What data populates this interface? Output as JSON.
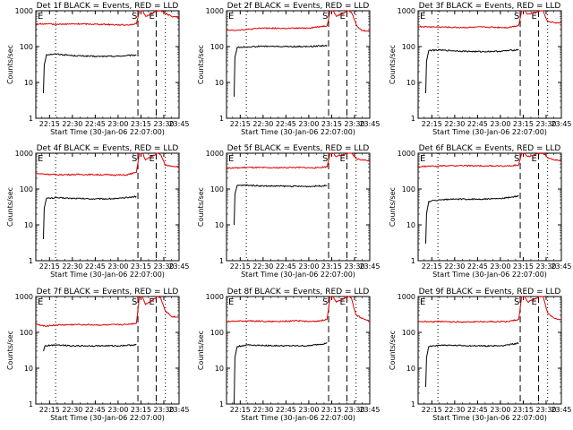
{
  "figure": {
    "xtick_labels": [
      "22:15",
      "22:30",
      "22:45",
      "23:00",
      "23:15",
      "23:30",
      "23:45"
    ],
    "ytick_labels": [
      "1",
      "10",
      "100",
      "1000"
    ],
    "xlabel": "Start Time (30-Jan-06 22:07:00)",
    "ylabel": "Counts/sec",
    "marker_e": "E",
    "marker_s": "S"
  },
  "colors": {
    "events": "#000000",
    "lld": "#e00000",
    "axes": "#000000"
  },
  "chart_data": [
    {
      "type": "line",
      "title": "Det 1f BLACK = Events, RED = LLD",
      "x_unit": "minutes since 22:07:00",
      "xlim": [
        6,
        100
      ],
      "ylim": [
        1,
        1000
      ],
      "yscale": "log",
      "vlines": {
        "dotted": [
          19,
          91
        ],
        "dashed": [
          73,
          85
        ]
      },
      "series": [
        {
          "name": "Events",
          "color": "#000000",
          "points": [
            [
              11,
              5
            ],
            [
              11.5,
              30
            ],
            [
              13,
              60
            ],
            [
              20,
              62
            ],
            [
              30,
              56
            ],
            [
              45,
              53
            ],
            [
              60,
              54
            ],
            [
              72,
              58
            ]
          ]
        },
        {
          "name": "LLD",
          "color": "#e00000",
          "points": [
            [
              6,
              430
            ],
            [
              20,
              420
            ],
            [
              35,
              430
            ],
            [
              50,
              420
            ],
            [
              65,
              400
            ],
            [
              72,
              430
            ],
            [
              74,
              1000
            ],
            [
              76,
              1000
            ],
            [
              78,
              700
            ],
            [
              86,
              1000
            ],
            [
              88,
              1000
            ],
            [
              90,
              900
            ],
            [
              95,
              700
            ],
            [
              100,
              650
            ]
          ]
        }
      ]
    },
    {
      "type": "line",
      "title": "Det 2f BLACK = Events, RED = LLD",
      "x_unit": "minutes since 22:07:00",
      "xlim": [
        6,
        100
      ],
      "ylim": [
        1,
        1000
      ],
      "yscale": "log",
      "vlines": {
        "dotted": [
          19,
          91
        ],
        "dashed": [
          73,
          85
        ]
      },
      "series": [
        {
          "name": "Events",
          "color": "#000000",
          "points": [
            [
              11,
              4
            ],
            [
              11.5,
              50
            ],
            [
              13,
              95
            ],
            [
              20,
              98
            ],
            [
              30,
              102
            ],
            [
              45,
              100
            ],
            [
              60,
              100
            ],
            [
              72,
              108
            ]
          ]
        },
        {
          "name": "LLD",
          "color": "#e00000",
          "points": [
            [
              6,
              280
            ],
            [
              20,
              300
            ],
            [
              30,
              330
            ],
            [
              45,
              320
            ],
            [
              60,
              330
            ],
            [
              72,
              380
            ],
            [
              74,
              1000
            ],
            [
              76,
              1000
            ],
            [
              78,
              700
            ],
            [
              86,
              1000
            ],
            [
              88,
              900
            ],
            [
              92,
              350
            ],
            [
              95,
              280
            ],
            [
              100,
              270
            ]
          ]
        }
      ]
    },
    {
      "type": "line",
      "title": "Det 3f BLACK = Events, RED = LLD",
      "x_unit": "minutes since 22:07:00",
      "xlim": [
        6,
        100
      ],
      "ylim": [
        1,
        1000
      ],
      "yscale": "log",
      "vlines": {
        "dotted": [
          19,
          91
        ],
        "dashed": [
          73,
          85
        ]
      },
      "series": [
        {
          "name": "Events",
          "color": "#000000",
          "points": [
            [
              11,
              5
            ],
            [
              11.5,
              40
            ],
            [
              13,
              78
            ],
            [
              20,
              80
            ],
            [
              30,
              76
            ],
            [
              45,
              72
            ],
            [
              60,
              74
            ],
            [
              72,
              82
            ]
          ]
        },
        {
          "name": "LLD",
          "color": "#e00000",
          "points": [
            [
              6,
              360
            ],
            [
              20,
              350
            ],
            [
              35,
              340
            ],
            [
              50,
              350
            ],
            [
              65,
              340
            ],
            [
              72,
              390
            ],
            [
              74,
              1000
            ],
            [
              76,
              1000
            ],
            [
              78,
              800
            ],
            [
              86,
              1000
            ],
            [
              88,
              1000
            ],
            [
              91,
              500
            ],
            [
              95,
              470
            ],
            [
              100,
              450
            ]
          ]
        }
      ]
    },
    {
      "type": "line",
      "title": "Det 4f BLACK = Events, RED = LLD",
      "x_unit": "minutes since 22:07:00",
      "xlim": [
        6,
        100
      ],
      "ylim": [
        1,
        1000
      ],
      "yscale": "log",
      "vlines": {
        "dotted": [
          19,
          91
        ],
        "dashed": [
          73,
          85
        ]
      },
      "series": [
        {
          "name": "Events",
          "color": "#000000",
          "points": [
            [
              11,
              4
            ],
            [
              11.5,
              30
            ],
            [
              13,
              55
            ],
            [
              20,
              57
            ],
            [
              30,
              55
            ],
            [
              45,
              53
            ],
            [
              60,
              54
            ],
            [
              72,
              62
            ]
          ]
        },
        {
          "name": "LLD",
          "color": "#e00000",
          "points": [
            [
              6,
              270
            ],
            [
              20,
              250
            ],
            [
              35,
              255
            ],
            [
              50,
              250
            ],
            [
              65,
              245
            ],
            [
              72,
              290
            ],
            [
              74,
              1000
            ],
            [
              76,
              1000
            ],
            [
              78,
              650
            ],
            [
              86,
              1000
            ],
            [
              88,
              900
            ],
            [
              91,
              460
            ],
            [
              95,
              440
            ],
            [
              100,
              420
            ]
          ]
        }
      ]
    },
    {
      "type": "line",
      "title": "Det 5f BLACK = Events, RED = LLD",
      "x_unit": "minutes since 22:07:00",
      "xlim": [
        6,
        100
      ],
      "ylim": [
        1,
        1000
      ],
      "yscale": "log",
      "vlines": {
        "dotted": [
          19,
          91
        ],
        "dashed": [
          73,
          85
        ]
      },
      "series": [
        {
          "name": "Events",
          "color": "#000000",
          "points": [
            [
              11,
              10
            ],
            [
              11.5,
              70
            ],
            [
              13,
              125
            ],
            [
              20,
              128
            ],
            [
              30,
              122
            ],
            [
              45,
              120
            ],
            [
              60,
              118
            ],
            [
              72,
              125
            ]
          ]
        },
        {
          "name": "LLD",
          "color": "#e00000",
          "points": [
            [
              6,
              380
            ],
            [
              20,
              400
            ],
            [
              35,
              390
            ],
            [
              50,
              400
            ],
            [
              65,
              390
            ],
            [
              72,
              420
            ],
            [
              74,
              1000
            ],
            [
              76,
              1000
            ],
            [
              78,
              800
            ],
            [
              86,
              1000
            ],
            [
              88,
              1000
            ],
            [
              91,
              700
            ],
            [
              95,
              650
            ],
            [
              100,
              620
            ]
          ]
        }
      ]
    },
    {
      "type": "line",
      "title": "Det 6f BLACK = Events, RED = LLD",
      "x_unit": "minutes since 22:07:00",
      "xlim": [
        6,
        100
      ],
      "ylim": [
        1,
        1000
      ],
      "yscale": "log",
      "vlines": {
        "dotted": [
          19,
          91
        ],
        "dashed": [
          73,
          85
        ]
      },
      "series": [
        {
          "name": "Events",
          "color": "#000000",
          "points": [
            [
              11,
              3
            ],
            [
              11.5,
              20
            ],
            [
              13,
              45
            ],
            [
              20,
              50
            ],
            [
              30,
              52
            ],
            [
              45,
              52
            ],
            [
              60,
              54
            ],
            [
              72,
              64
            ]
          ]
        },
        {
          "name": "LLD",
          "color": "#e00000",
          "points": [
            [
              6,
              420
            ],
            [
              20,
              440
            ],
            [
              35,
              450
            ],
            [
              50,
              440
            ],
            [
              65,
              440
            ],
            [
              72,
              470
            ],
            [
              74,
              1000
            ],
            [
              76,
              1000
            ],
            [
              78,
              800
            ],
            [
              86,
              1000
            ],
            [
              88,
              1000
            ],
            [
              91,
              750
            ],
            [
              95,
              650
            ],
            [
              100,
              620
            ]
          ]
        }
      ]
    },
    {
      "type": "line",
      "title": "Det 7f BLACK = Events, RED = LLD",
      "x_unit": "minutes since 22:07:00",
      "xlim": [
        6,
        100
      ],
      "ylim": [
        1,
        1000
      ],
      "yscale": "log",
      "vlines": {
        "dotted": [
          19,
          91
        ],
        "dashed": [
          73,
          85
        ]
      },
      "series": [
        {
          "name": "Events",
          "color": "#000000",
          "points": [
            [
              11,
              30
            ],
            [
              12,
              42
            ],
            [
              20,
              45
            ],
            [
              30,
              42
            ],
            [
              45,
              42
            ],
            [
              60,
              42
            ],
            [
              72,
              45
            ]
          ]
        },
        {
          "name": "LLD",
          "color": "#e00000",
          "points": [
            [
              6,
              170
            ],
            [
              11,
              150
            ],
            [
              20,
              160
            ],
            [
              35,
              165
            ],
            [
              50,
              160
            ],
            [
              65,
              165
            ],
            [
              72,
              180
            ],
            [
              74,
              1000
            ],
            [
              76,
              1000
            ],
            [
              78,
              600
            ],
            [
              86,
              1000
            ],
            [
              88,
              900
            ],
            [
              91,
              400
            ],
            [
              95,
              280
            ],
            [
              100,
              260
            ]
          ]
        }
      ]
    },
    {
      "type": "line",
      "title": "Det 8f BLACK = Events, RED = LLD",
      "x_unit": "minutes since 22:07:00",
      "xlim": [
        6,
        100
      ],
      "ylim": [
        1,
        1000
      ],
      "yscale": "log",
      "vlines": {
        "dotted": [
          19,
          91
        ],
        "dashed": [
          73,
          85
        ]
      },
      "series": [
        {
          "name": "Events",
          "color": "#000000",
          "points": [
            [
              11,
              1
            ],
            [
              11.5,
              20
            ],
            [
              13,
              40
            ],
            [
              20,
              45
            ],
            [
              30,
              43
            ],
            [
              45,
              42
            ],
            [
              60,
              42
            ],
            [
              72,
              50
            ]
          ]
        },
        {
          "name": "LLD",
          "color": "#e00000",
          "points": [
            [
              6,
              200
            ],
            [
              20,
              210
            ],
            [
              35,
              200
            ],
            [
              50,
              210
            ],
            [
              65,
              200
            ],
            [
              72,
              230
            ],
            [
              74,
              1000
            ],
            [
              76,
              1000
            ],
            [
              78,
              700
            ],
            [
              86,
              1000
            ],
            [
              88,
              900
            ],
            [
              91,
              300
            ],
            [
              95,
              250
            ],
            [
              100,
              200
            ]
          ]
        }
      ]
    },
    {
      "type": "line",
      "title": "Det 9f BLACK = Events, RED = LLD",
      "x_unit": "minutes since 22:07:00",
      "xlim": [
        6,
        100
      ],
      "ylim": [
        1,
        1000
      ],
      "yscale": "log",
      "vlines": {
        "dotted": [
          19,
          91
        ],
        "dashed": [
          73,
          85
        ]
      },
      "series": [
        {
          "name": "Events",
          "color": "#000000",
          "points": [
            [
              11,
              3
            ],
            [
              11.5,
              20
            ],
            [
              13,
              40
            ],
            [
              20,
              44
            ],
            [
              30,
              43
            ],
            [
              45,
              42
            ],
            [
              60,
              42
            ],
            [
              72,
              50
            ]
          ]
        },
        {
          "name": "LLD",
          "color": "#e00000",
          "points": [
            [
              6,
              200
            ],
            [
              20,
              200
            ],
            [
              35,
              195
            ],
            [
              50,
              200
            ],
            [
              65,
              200
            ],
            [
              72,
              230
            ],
            [
              74,
              1000
            ],
            [
              76,
              1000
            ],
            [
              78,
              700
            ],
            [
              86,
              1000
            ],
            [
              88,
              1000
            ],
            [
              91,
              350
            ],
            [
              95,
              250
            ],
            [
              100,
              230
            ]
          ]
        }
      ]
    }
  ]
}
